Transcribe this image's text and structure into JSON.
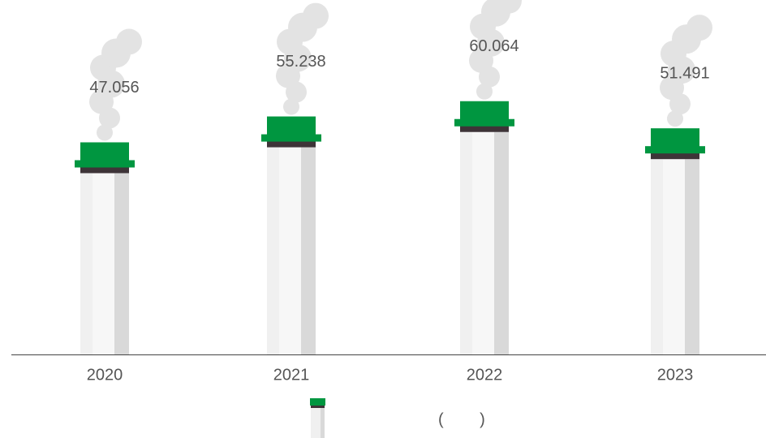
{
  "chart_data": {
    "type": "chimney-bar",
    "categories": [
      "2020",
      "2021",
      "2022",
      "2023"
    ],
    "series": [
      {
        "name": "(        )",
        "color": "#009640",
        "values": [
          47.056,
          55.238,
          60.064,
          51.491
        ]
      }
    ]
  }
}
